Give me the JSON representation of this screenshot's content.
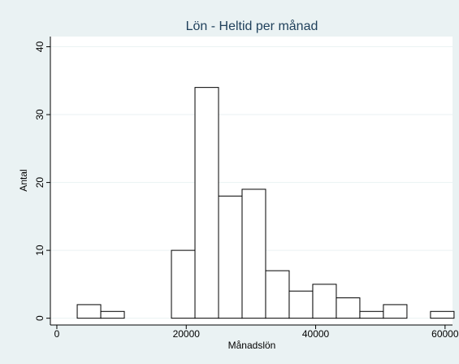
{
  "chart_data": {
    "type": "histogram",
    "title": "Lön - Heltid per månad",
    "x_label": "Månadslön",
    "y_label": "Antal",
    "bins": [
      3150,
      6790,
      10430,
      14070,
      17710,
      21350,
      24990,
      28630,
      32270,
      35910,
      39550,
      43190,
      46830,
      50470,
      54110,
      57750,
      61390
    ],
    "values": [
      2,
      1,
      0,
      0,
      10,
      34,
      18,
      19,
      7,
      4,
      5,
      3,
      1,
      2,
      0,
      1
    ],
    "color": "#ffffff",
    "edge_color": "#000000",
    "xlim": [
      -1000,
      61150
    ],
    "xticks": [
      0,
      20000,
      40000,
      60000
    ],
    "ylim": [
      -1,
      41.5
    ],
    "yticks": [
      0,
      10,
      20,
      30,
      40
    ],
    "grid": true
  }
}
